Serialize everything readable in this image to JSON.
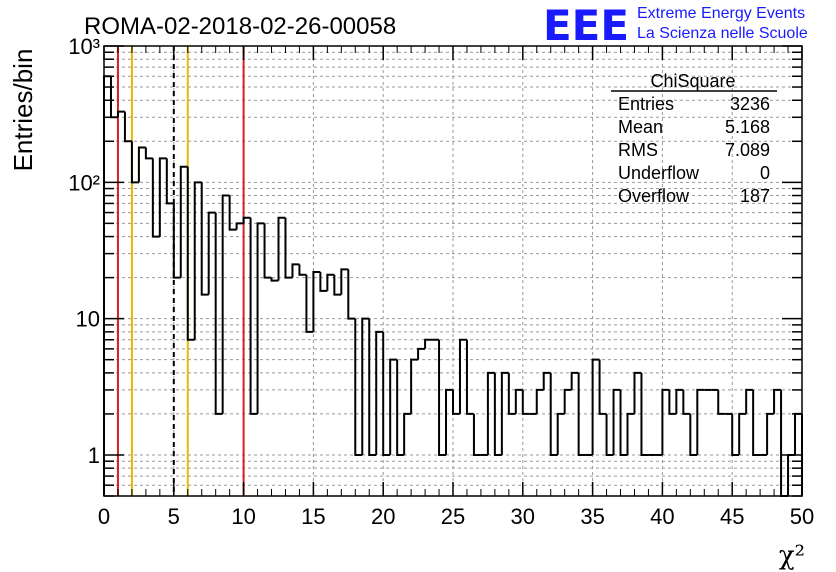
{
  "header": {
    "run_title": "ROMA-02-2018-02-26-00058",
    "logo_text": "EEE",
    "logo_line1": "Extreme Energy Events",
    "logo_line2": "La Scienza nelle Scuole"
  },
  "stats_box": {
    "title": "ChiSquare",
    "rows": [
      {
        "label": "Entries",
        "value": "3236"
      },
      {
        "label": "Mean",
        "value": "5.168"
      },
      {
        "label": "RMS",
        "value": "7.089"
      },
      {
        "label": "Underflow",
        "value": "0"
      },
      {
        "label": "Overflow",
        "value": "187"
      }
    ]
  },
  "chart_data": {
    "type": "histogram",
    "xlabel": "χ²",
    "ylabel": "Entries/bin",
    "x_range": [
      0,
      50
    ],
    "y_range": [
      0.5,
      1000
    ],
    "y_scale": "log",
    "bin_width": 0.5,
    "x_ticks": [
      0,
      5,
      10,
      15,
      20,
      25,
      30,
      35,
      40,
      45,
      50
    ],
    "y_ticks": [
      {
        "value": 1,
        "label": "1"
      },
      {
        "value": 10,
        "label": "10"
      },
      {
        "value": 100,
        "label": "10²"
      },
      {
        "value": 1000,
        "label": "10³"
      }
    ],
    "grid": true,
    "line_color": "#000000",
    "bin_counts": [
      600,
      300,
      330,
      200,
      100,
      180,
      150,
      40,
      150,
      70,
      20,
      130,
      7,
      100,
      15,
      60,
      2,
      80,
      45,
      50,
      55,
      2,
      50,
      20,
      19,
      55,
      20,
      25,
      21,
      8,
      22,
      16,
      21,
      15,
      23,
      10,
      1,
      10,
      1,
      8,
      1,
      5,
      1,
      2,
      5,
      6,
      7,
      7,
      1,
      3,
      2,
      7,
      2,
      1,
      1,
      4,
      1,
      4,
      2,
      3,
      2,
      2,
      3,
      4,
      1,
      2,
      3,
      4,
      1,
      1,
      5,
      2,
      1,
      3,
      1,
      2,
      4,
      1,
      1,
      1,
      3,
      2,
      3,
      2,
      1,
      3,
      3,
      3,
      2,
      2,
      1,
      2,
      3,
      1,
      1,
      2,
      3,
      0,
      1,
      2
    ]
  },
  "vertical_lines": [
    {
      "x": 1,
      "color": "#d92020",
      "style": "solid"
    },
    {
      "x": 2,
      "color": "#e6b800",
      "style": "solid"
    },
    {
      "x": 5,
      "color": "#000000",
      "style": "dashed"
    },
    {
      "x": 6,
      "color": "#e6b800",
      "style": "solid"
    },
    {
      "x": 10,
      "color": "#d92020",
      "style": "solid"
    }
  ]
}
